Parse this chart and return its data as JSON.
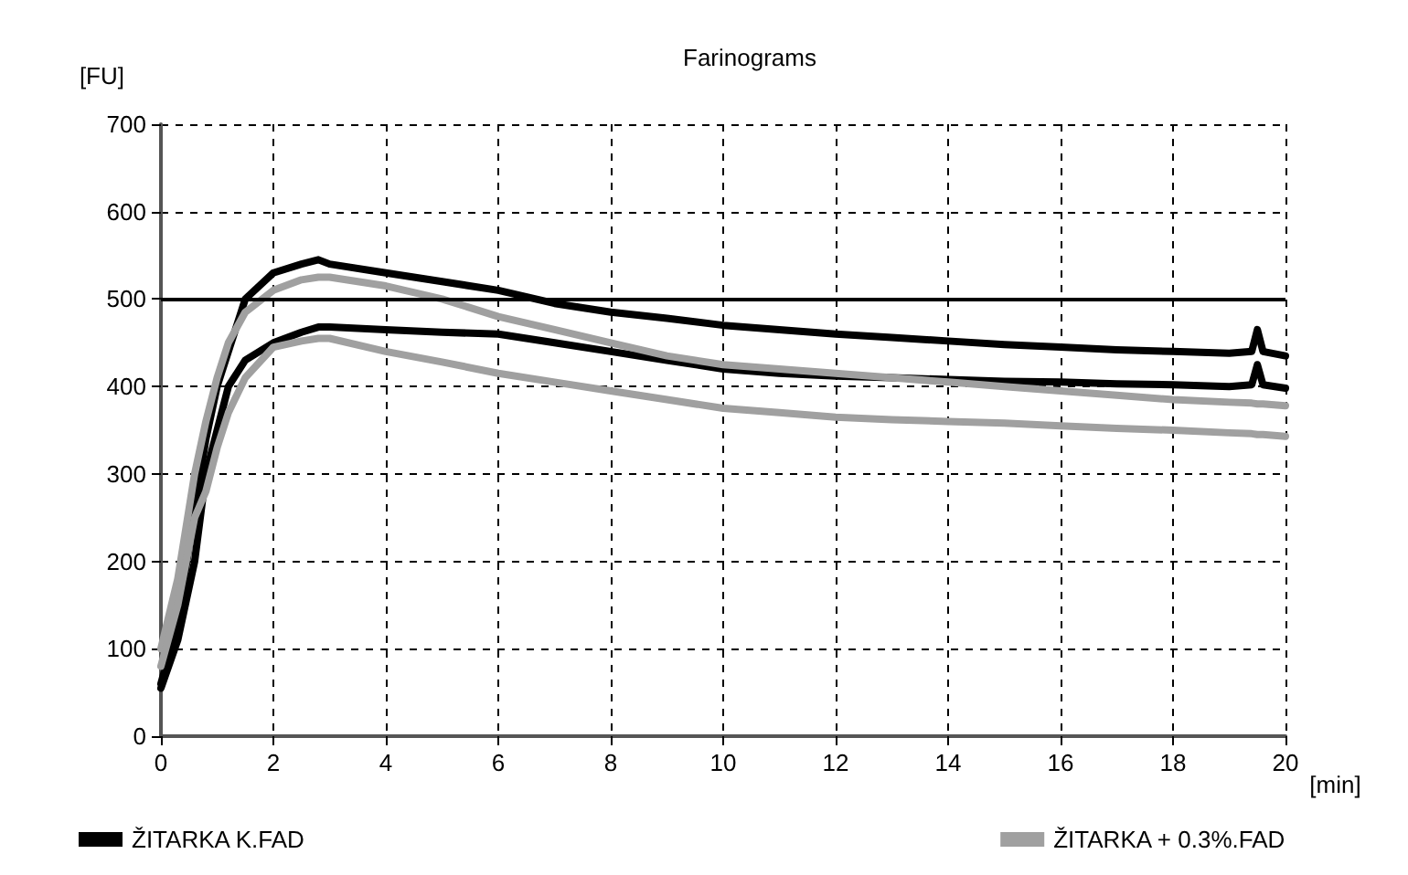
{
  "chart_data": {
    "type": "line",
    "title": "Farinograms",
    "xlabel": "[min]",
    "ylabel": "[FU]",
    "x": [
      0,
      0.3,
      0.6,
      0.8,
      1,
      1.2,
      1.5,
      2,
      2.5,
      2.8,
      3,
      4,
      5,
      6,
      7,
      8,
      9,
      10,
      11,
      12,
      13,
      14,
      15,
      16,
      17,
      18,
      19,
      19.4,
      19.5,
      19.6,
      20
    ],
    "series": [
      {
        "name": "ŽITARKA K.FAD",
        "color": "#000000",
        "values": [
          60,
          130,
          260,
          340,
          400,
          440,
          500,
          530,
          540,
          545,
          540,
          530,
          520,
          510,
          495,
          485,
          478,
          470,
          465,
          460,
          456,
          452,
          448,
          445,
          442,
          440,
          438,
          440,
          465,
          440,
          435
        ]
      },
      {
        "color": "#000000",
        "values": [
          55,
          110,
          200,
          300,
          350,
          400,
          430,
          450,
          462,
          468,
          468,
          465,
          462,
          460,
          450,
          440,
          430,
          420,
          415,
          412,
          410,
          408,
          406,
          405,
          403,
          402,
          400,
          402,
          425,
          402,
          398
        ]
      },
      {
        "name": "ŽITARKA + 0.3%.FAD",
        "color": "#a0a0a0",
        "values": [
          100,
          180,
          300,
          360,
          410,
          450,
          485,
          510,
          522,
          525,
          525,
          515,
          500,
          480,
          465,
          450,
          435,
          425,
          420,
          415,
          410,
          405,
          400,
          395,
          390,
          385,
          382,
          381,
          380,
          380,
          378
        ]
      },
      {
        "color": "#a0a0a0",
        "values": [
          80,
          150,
          250,
          280,
          330,
          370,
          410,
          445,
          452,
          455,
          455,
          440,
          428,
          415,
          405,
          395,
          385,
          375,
          370,
          365,
          362,
          360,
          358,
          355,
          352,
          350,
          347,
          346,
          345,
          345,
          343
        ]
      }
    ],
    "xlim": [
      0,
      20
    ],
    "xticks": [
      0,
      2,
      4,
      6,
      8,
      10,
      12,
      14,
      16,
      18,
      20
    ],
    "ylim": [
      0,
      700
    ],
    "yticks": [
      0,
      100,
      200,
      300,
      400,
      500,
      600,
      700
    ],
    "ref_lines": [
      {
        "axis": "y",
        "value": 500,
        "color": "#000000",
        "line_style": "solid"
      }
    ],
    "grid": true,
    "legend": "bottom",
    "marker": "none",
    "line_style": "solid"
  }
}
